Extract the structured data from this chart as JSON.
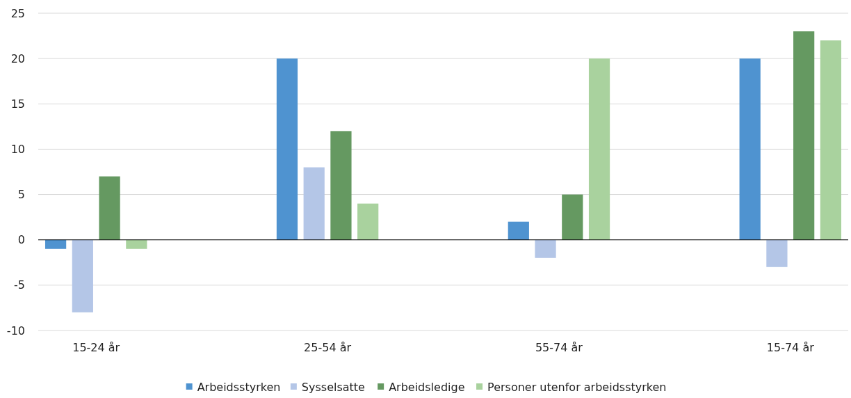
{
  "chart_data": {
    "type": "bar",
    "categories": [
      "15-24 år",
      "25-54 år",
      "55-74 år",
      "15-74 år"
    ],
    "series": [
      {
        "name": "Arbeidsstyrken",
        "color": "#4f93d0",
        "values": [
          -1,
          20,
          2,
          20
        ]
      },
      {
        "name": "Sysselsatte",
        "color": "#b4c6e7",
        "values": [
          -8,
          8,
          -2,
          -3
        ]
      },
      {
        "name": "Arbeidsledige",
        "color": "#659961",
        "values": [
          7,
          12,
          5,
          23
        ]
      },
      {
        "name": "Personer utenfor arbeidsstyrken",
        "color": "#a9d29e",
        "values": [
          -1,
          4,
          20,
          22
        ]
      }
    ],
    "ylim": [
      -10,
      25
    ],
    "yticks": [
      -10,
      -5,
      0,
      5,
      10,
      15,
      20,
      25
    ],
    "grid": "y",
    "legend": "bottom"
  }
}
